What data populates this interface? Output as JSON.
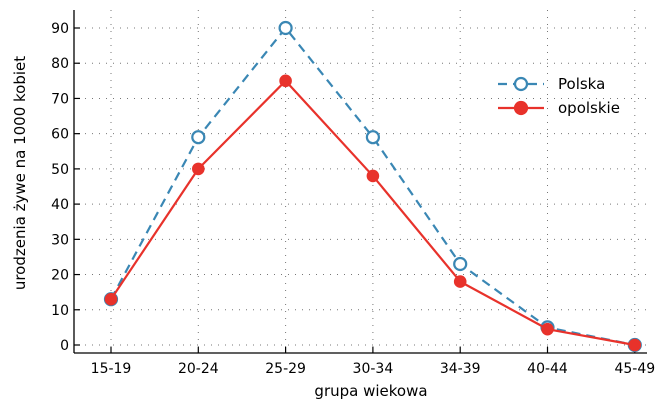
{
  "chart_data": {
    "type": "line",
    "title": "",
    "xlabel": "grupa wiekowa",
    "ylabel": "urodzenia żywe na 1000 kobiet",
    "categories": [
      "15-19",
      "20-24",
      "25-29",
      "30-34",
      "34-39",
      "40-44",
      "45-49"
    ],
    "ylim": [
      0,
      90
    ],
    "yticks": [
      0,
      10,
      20,
      30,
      40,
      50,
      60,
      70,
      80,
      90
    ],
    "grid": true,
    "legend_position": "top-right",
    "series": [
      {
        "name": "Polska",
        "values": [
          13,
          59,
          90,
          59,
          23,
          5,
          0
        ],
        "color": "#3a87b4",
        "marker": "open-circle",
        "line_style": "dashed"
      },
      {
        "name": "opolskie",
        "values": [
          13,
          50,
          75,
          48,
          18,
          4.5,
          0
        ],
        "color": "#e8322b",
        "marker": "filled-circle",
        "line_style": "solid"
      }
    ]
  }
}
